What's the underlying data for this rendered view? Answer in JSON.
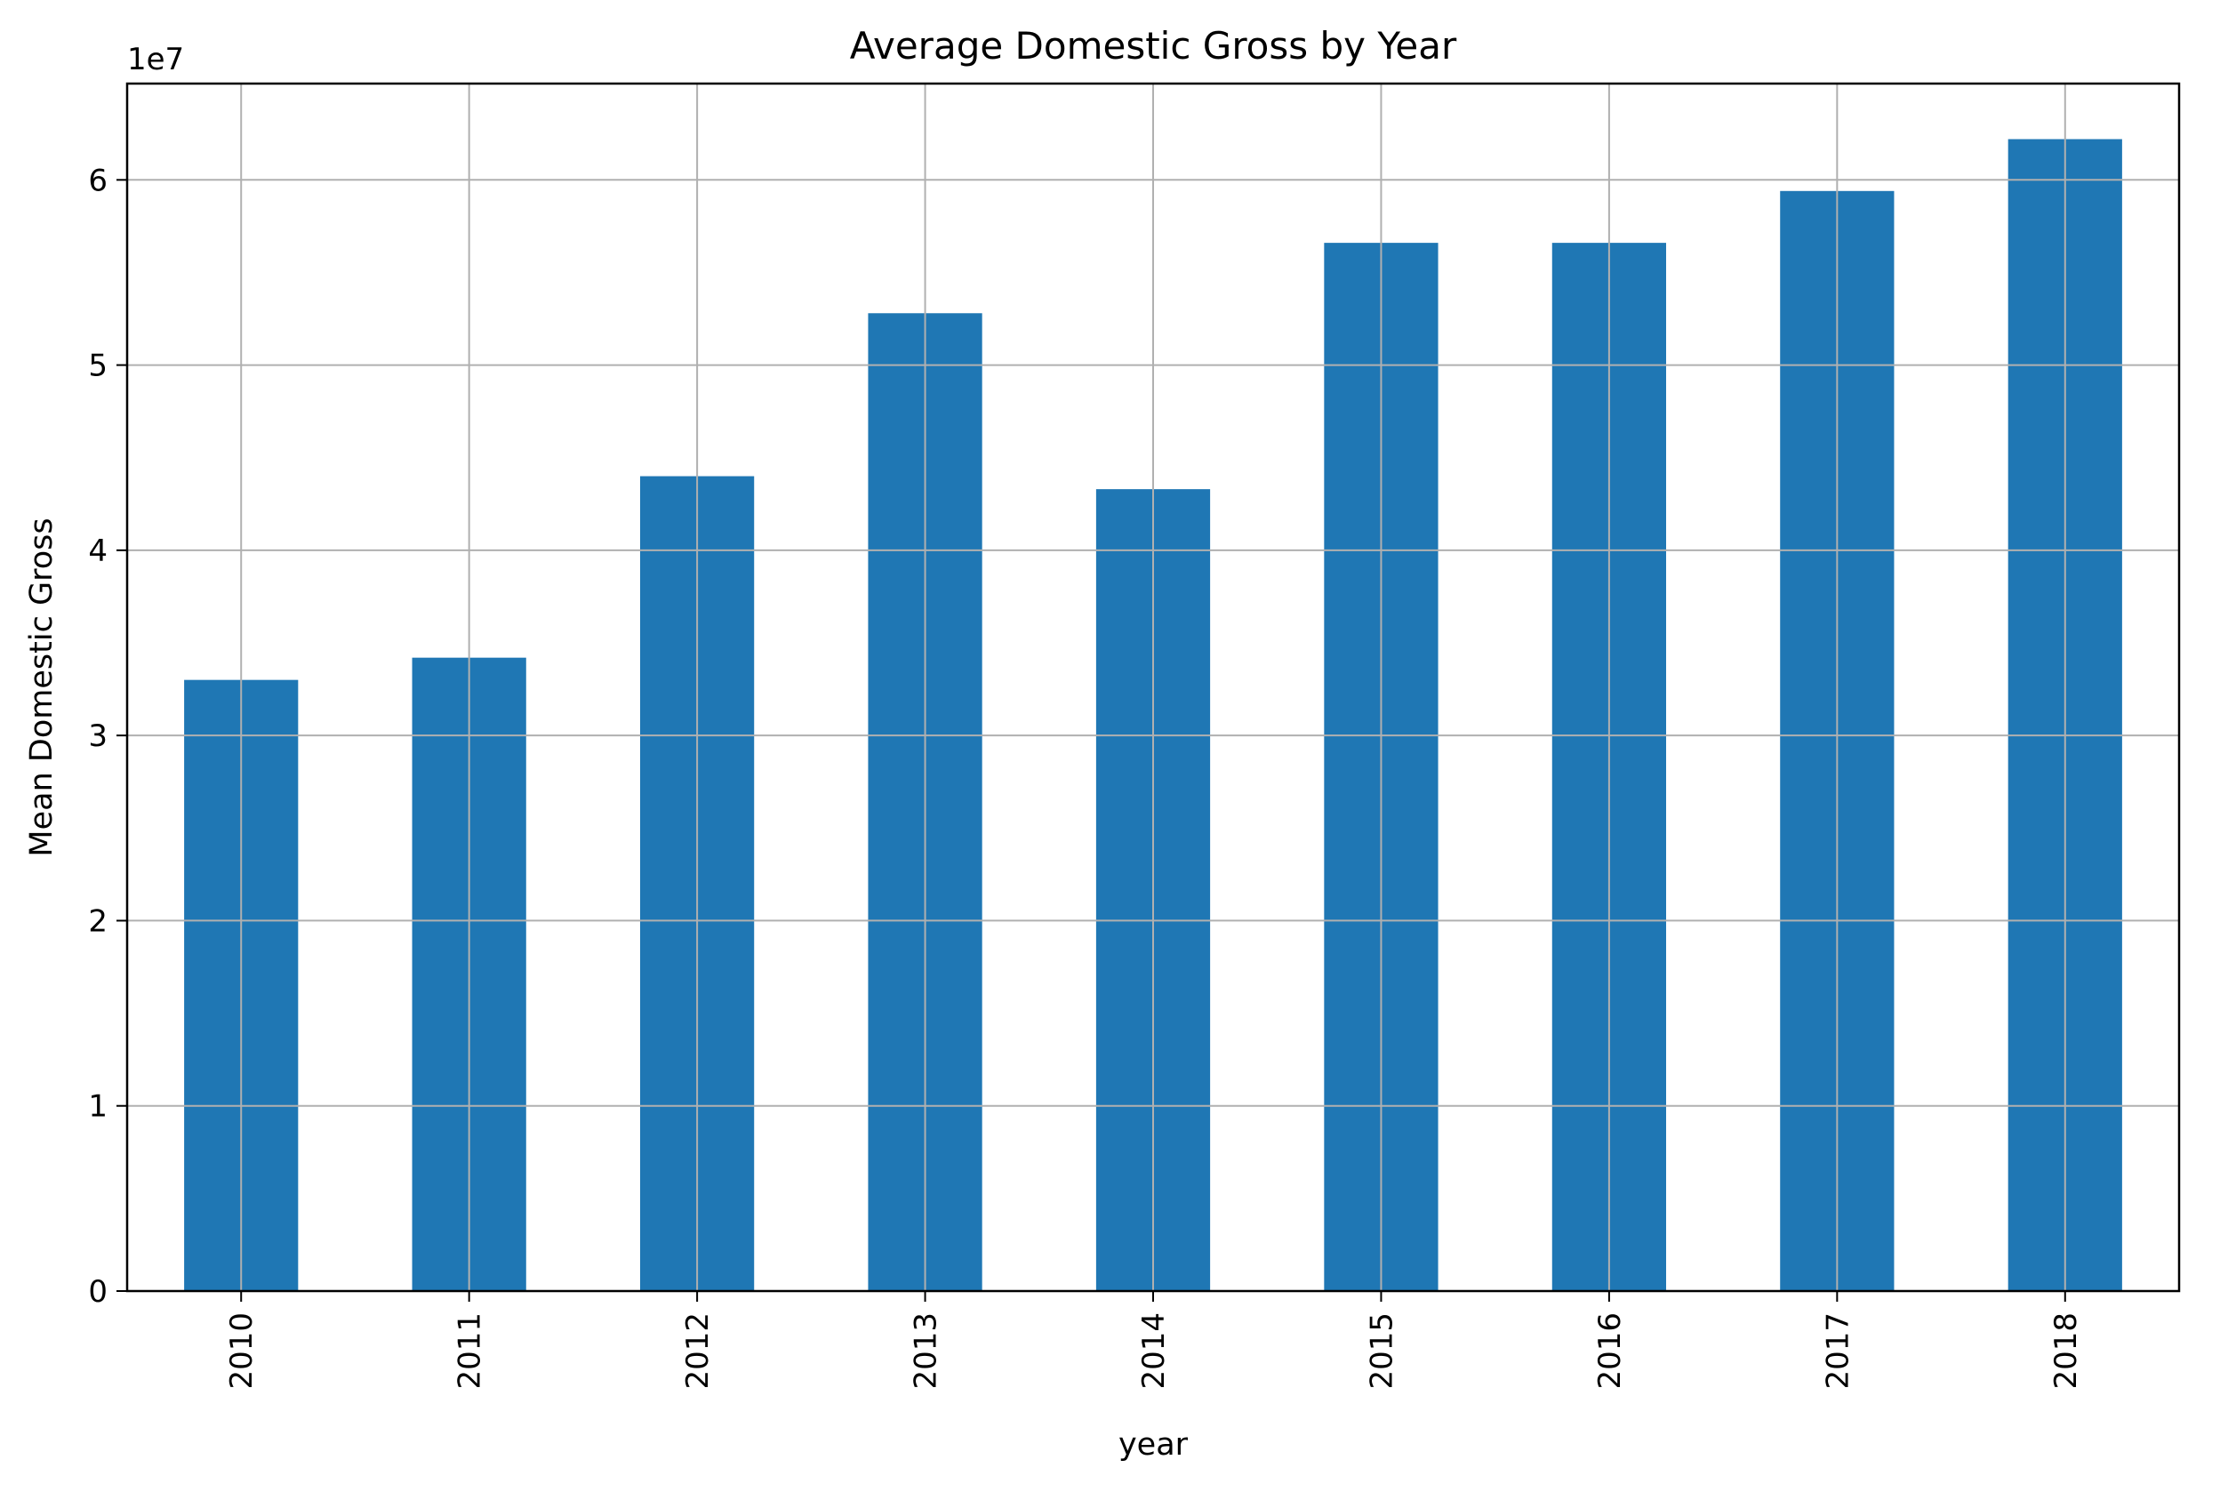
{
  "chart_data": {
    "type": "bar",
    "title": "Average Domestic Gross by Year",
    "xlabel": "year",
    "ylabel": "Mean Domestic Gross",
    "y_offset_label": "1e7",
    "y_scale": 10000000,
    "categories": [
      "2010",
      "2011",
      "2012",
      "2013",
      "2014",
      "2015",
      "2016",
      "2017",
      "2018"
    ],
    "values": [
      33000000,
      34200000,
      44000000,
      52800000,
      43300000,
      56600000,
      56600000,
      59400000,
      62200000
    ],
    "ylim": [
      0,
      65200000
    ],
    "yticks": [
      0,
      10000000,
      20000000,
      30000000,
      40000000,
      50000000,
      60000000
    ],
    "ytick_labels": [
      "0",
      "1",
      "2",
      "3",
      "4",
      "5",
      "6"
    ],
    "grid": true,
    "colors": {
      "bar": "#1f77b4",
      "grid": "#b0b0b0",
      "axis": "#000000"
    }
  }
}
